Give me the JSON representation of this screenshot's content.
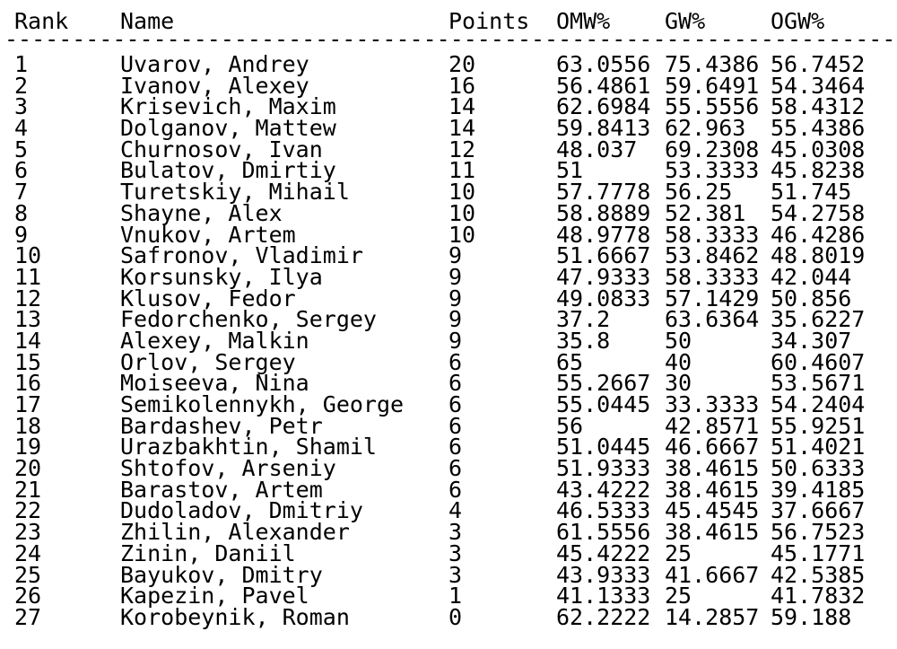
{
  "colors": {
    "text": "#000000",
    "background": "#ffffff"
  },
  "table": {
    "separator": "--------------------------------------------------------------------",
    "columns": {
      "rank": "Rank",
      "name": "Name",
      "points": "Points",
      "omw": "OMW%",
      "gw": "GW%",
      "ogw": "OGW%"
    },
    "rows": [
      {
        "rank": "1",
        "name": "Uvarov, Andrey",
        "points": "20",
        "omw": "63.0556",
        "gw": "75.4386",
        "ogw": "56.7452"
      },
      {
        "rank": "2",
        "name": "Ivanov, Alexey",
        "points": "16",
        "omw": "56.4861",
        "gw": "59.6491",
        "ogw": "54.3464"
      },
      {
        "rank": "3",
        "name": "Krisevich, Maxim",
        "points": "14",
        "omw": "62.6984",
        "gw": "55.5556",
        "ogw": "58.4312"
      },
      {
        "rank": "4",
        "name": "Dolganov, Mattew",
        "points": "14",
        "omw": "59.8413",
        "gw": "62.963",
        "ogw": "55.4386"
      },
      {
        "rank": "5",
        "name": "Churnosov, Ivan",
        "points": "12",
        "omw": "48.037",
        "gw": "69.2308",
        "ogw": "45.0308"
      },
      {
        "rank": "6",
        "name": "Bulatov, Dmirtiy",
        "points": "11",
        "omw": "51",
        "gw": "53.3333",
        "ogw": "45.8238"
      },
      {
        "rank": "7",
        "name": "Turetskiy, Mihail",
        "points": "10",
        "omw": "57.7778",
        "gw": "56.25",
        "ogw": "51.745"
      },
      {
        "rank": "8",
        "name": "Shayne, Alex",
        "points": "10",
        "omw": "58.8889",
        "gw": "52.381",
        "ogw": "54.2758"
      },
      {
        "rank": "9",
        "name": "Vnukov, Artem",
        "points": "10",
        "omw": "48.9778",
        "gw": "58.3333",
        "ogw": "46.4286"
      },
      {
        "rank": "10",
        "name": "Safronov, Vladimir",
        "points": "9",
        "omw": "51.6667",
        "gw": "53.8462",
        "ogw": "48.8019"
      },
      {
        "rank": "11",
        "name": "Korsunsky, Ilya",
        "points": "9",
        "omw": "47.9333",
        "gw": "58.3333",
        "ogw": "42.044"
      },
      {
        "rank": "12",
        "name": "Klusov, Fedor",
        "points": "9",
        "omw": "49.0833",
        "gw": "57.1429",
        "ogw": "50.856"
      },
      {
        "rank": "13",
        "name": "Fedorchenko, Sergey",
        "points": "9",
        "omw": "37.2",
        "gw": "63.6364",
        "ogw": "35.6227"
      },
      {
        "rank": "14",
        "name": "Alexey, Malkin",
        "points": "9",
        "omw": "35.8",
        "gw": "50",
        "ogw": "34.307"
      },
      {
        "rank": "15",
        "name": "Orlov, Sergey",
        "points": "6",
        "omw": "65",
        "gw": "40",
        "ogw": "60.4607"
      },
      {
        "rank": "16",
        "name": "Moiseeva, Nina",
        "points": "6",
        "omw": "55.2667",
        "gw": "30",
        "ogw": "53.5671"
      },
      {
        "rank": "17",
        "name": "Semikolennykh, George",
        "points": "6",
        "omw": "55.0445",
        "gw": "33.3333",
        "ogw": "54.2404"
      },
      {
        "rank": "18",
        "name": "Bardashev, Petr",
        "points": "6",
        "omw": "56",
        "gw": "42.8571",
        "ogw": "55.9251"
      },
      {
        "rank": "19",
        "name": "Urazbakhtin, Shamil",
        "points": "6",
        "omw": "51.0445",
        "gw": "46.6667",
        "ogw": "51.4021"
      },
      {
        "rank": "20",
        "name": "Shtofov, Arseniy",
        "points": "6",
        "omw": "51.9333",
        "gw": "38.4615",
        "ogw": "50.6333"
      },
      {
        "rank": "21",
        "name": "Barastov, Artem",
        "points": "6",
        "omw": "43.4222",
        "gw": "38.4615",
        "ogw": "39.4185"
      },
      {
        "rank": "22",
        "name": "Dudoladov, Dmitriy",
        "points": "4",
        "omw": "46.5333",
        "gw": "45.4545",
        "ogw": "37.6667"
      },
      {
        "rank": "23",
        "name": "Zhilin, Alexander",
        "points": "3",
        "omw": "61.5556",
        "gw": "38.4615",
        "ogw": "56.7523"
      },
      {
        "rank": "24",
        "name": "Zinin, Daniil",
        "points": "3",
        "omw": "45.4222",
        "gw": "25",
        "ogw": "45.1771"
      },
      {
        "rank": "25",
        "name": "Bayukov, Dmitry",
        "points": "3",
        "omw": "43.9333",
        "gw": "41.6667",
        "ogw": "42.5385"
      },
      {
        "rank": "26",
        "name": "Kapezin, Pavel",
        "points": "1",
        "omw": "41.1333",
        "gw": "25",
        "ogw": "41.7832"
      },
      {
        "rank": "27",
        "name": "Korobeynik, Roman",
        "points": "0",
        "omw": "62.2222",
        "gw": "14.2857",
        "ogw": "59.188"
      }
    ]
  }
}
